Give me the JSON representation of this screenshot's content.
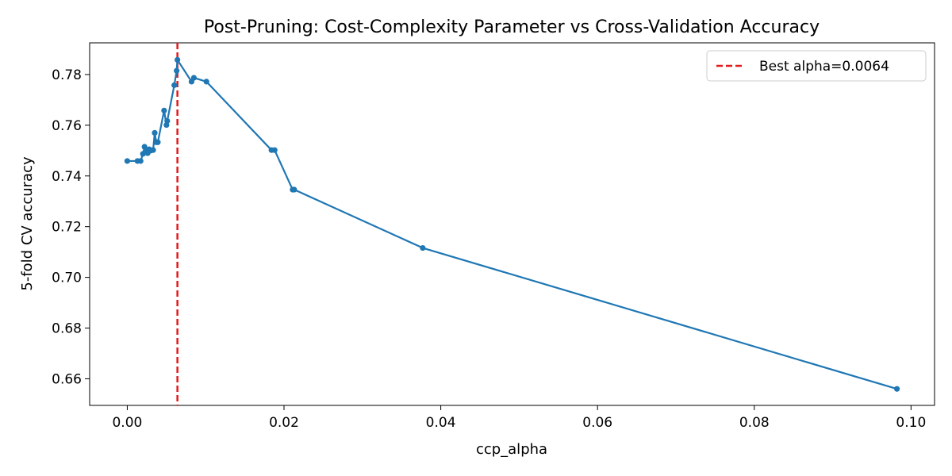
{
  "chart_data": {
    "type": "line",
    "title": "Post-Pruning: Cost-Complexity Parameter vs Cross-Validation Accuracy",
    "xlabel": "ccp_alpha",
    "ylabel": "5-fold CV accuracy",
    "xlim": [
      -0.0048,
      0.103
    ],
    "ylim": [
      0.6495,
      0.7925
    ],
    "xticks": [
      0.0,
      0.02,
      0.04,
      0.06,
      0.08,
      0.1
    ],
    "xtick_labels": [
      "0.00",
      "0.02",
      "0.04",
      "0.06",
      "0.08",
      "0.10"
    ],
    "yticks": [
      0.66,
      0.68,
      0.7,
      0.72,
      0.74,
      0.76,
      0.78
    ],
    "ytick_labels": [
      "0.66",
      "0.68",
      "0.70",
      "0.72",
      "0.74",
      "0.76",
      "0.78"
    ],
    "grid": false,
    "legend_position": "top-right",
    "series": [
      {
        "color": "#1f77b4",
        "points": [
          [
            0.0,
            0.7459
          ],
          [
            0.0013,
            0.7459
          ],
          [
            0.0017,
            0.7459
          ],
          [
            0.002,
            0.7487
          ],
          [
            0.0022,
            0.7515
          ],
          [
            0.0024,
            0.7505
          ],
          [
            0.0026,
            0.749
          ],
          [
            0.0028,
            0.7505
          ],
          [
            0.003,
            0.75
          ],
          [
            0.0033,
            0.7502
          ],
          [
            0.0035,
            0.757
          ],
          [
            0.0037,
            0.7533
          ],
          [
            0.0039,
            0.7533
          ],
          [
            0.0047,
            0.7658
          ],
          [
            0.005,
            0.7601
          ],
          [
            0.0051,
            0.7617
          ],
          [
            0.006,
            0.7758
          ],
          [
            0.0063,
            0.7815
          ],
          [
            0.0064,
            0.7858
          ],
          [
            0.0082,
            0.7772
          ],
          [
            0.0085,
            0.7787
          ],
          [
            0.0101,
            0.7772
          ],
          [
            0.0184,
            0.7502
          ],
          [
            0.0188,
            0.7502
          ],
          [
            0.0211,
            0.7346
          ],
          [
            0.0213,
            0.7346
          ],
          [
            0.0377,
            0.7116
          ],
          [
            0.0982,
            0.656
          ]
        ]
      }
    ],
    "reference_lines": [
      {
        "orientation": "vertical",
        "x": 0.0064,
        "color": "#e31a1c",
        "style": "dashed",
        "label": "Best alpha=0.0064"
      }
    ]
  }
}
